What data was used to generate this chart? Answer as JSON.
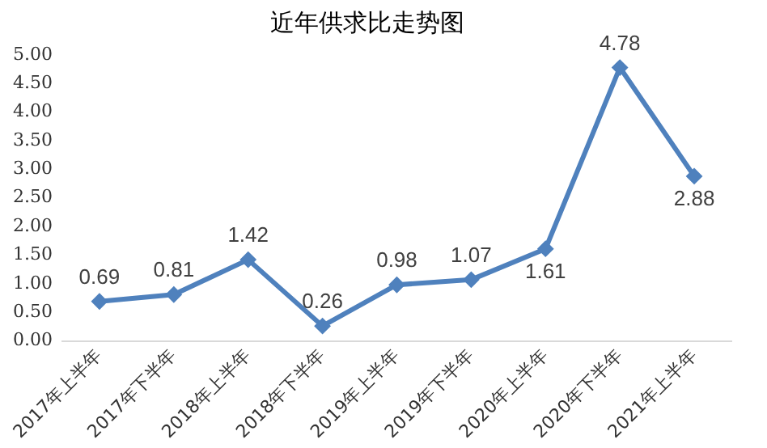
{
  "chart_data": {
    "type": "line",
    "title": "近年供求比走势图",
    "categories": [
      "2017年上半年",
      "2017年下半年",
      "2018年上半年",
      "2018年下半年",
      "2019年上半年",
      "2019年下半年",
      "2020年上半年",
      "2020年下半年",
      "2021年上半年"
    ],
    "series": [
      {
        "color": "#4f81bd",
        "values": [
          0.69,
          0.81,
          1.42,
          0.26,
          0.98,
          1.07,
          1.61,
          4.78,
          2.88
        ]
      }
    ],
    "ylim": [
      0,
      5
    ],
    "yticks": [
      {
        "value": 0,
        "label": "0.00"
      },
      {
        "value": 0.5,
        "label": "0.50"
      },
      {
        "value": 1,
        "label": "1.00"
      },
      {
        "value": 1.5,
        "label": "1.50"
      },
      {
        "value": 2,
        "label": "2.00"
      },
      {
        "value": 2.5,
        "label": "2.50"
      },
      {
        "value": 3,
        "label": "3.00"
      },
      {
        "value": 3.5,
        "label": "3.50"
      },
      {
        "value": 4,
        "label": "4.00"
      },
      {
        "value": 4.5,
        "label": "4.50"
      },
      {
        "value": 5,
        "label": "5.00"
      }
    ],
    "grid": false,
    "legend": false,
    "marker": "diamond",
    "line_style": "solid",
    "data_labels": true
  }
}
